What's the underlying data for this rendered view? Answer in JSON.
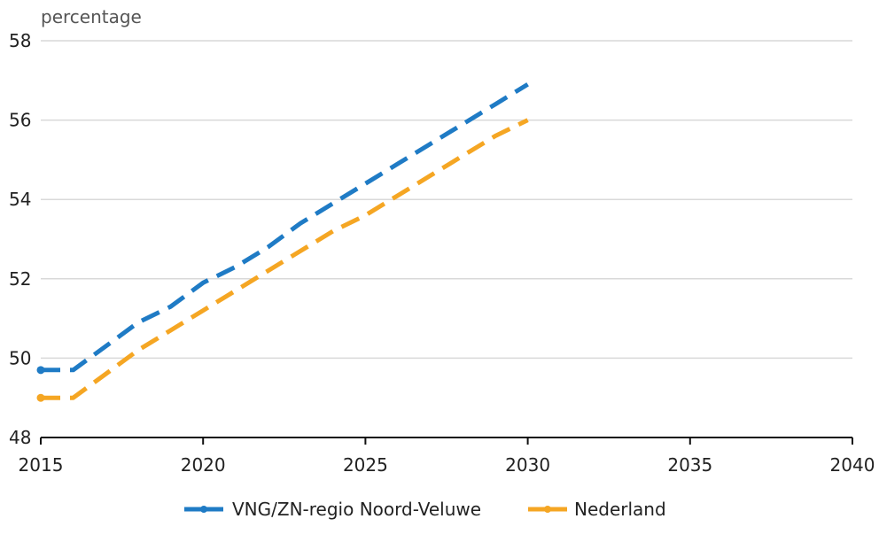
{
  "chart_data": {
    "type": "line",
    "unit_label": "percentage",
    "xlim": [
      2015,
      2040
    ],
    "ylim": [
      48,
      58
    ],
    "x_ticks": [
      2015,
      2020,
      2025,
      2030,
      2035,
      2040
    ],
    "y_ticks": [
      48,
      50,
      52,
      54,
      56,
      58
    ],
    "grid": true,
    "line_style": "dashed",
    "legend_position": "bottom",
    "series": [
      {
        "name": "VNG/ZN-regio Noord-Veluwe",
        "color": "#1f7bc5",
        "x": [
          2015,
          2016,
          2017,
          2018,
          2019,
          2020,
          2021,
          2022,
          2023,
          2024,
          2025,
          2026,
          2027,
          2028,
          2029,
          2030
        ],
        "values": [
          49.7,
          49.7,
          50.3,
          50.9,
          51.3,
          51.9,
          52.3,
          52.8,
          53.4,
          53.9,
          54.4,
          54.9,
          55.4,
          55.9,
          56.4,
          56.9
        ]
      },
      {
        "name": "Nederland",
        "color": "#f5a623",
        "x": [
          2015,
          2016,
          2017,
          2018,
          2019,
          2020,
          2021,
          2022,
          2023,
          2024,
          2025,
          2026,
          2027,
          2028,
          2029,
          2030
        ],
        "values": [
          49.0,
          49.0,
          49.6,
          50.2,
          50.7,
          51.2,
          51.7,
          52.2,
          52.7,
          53.2,
          53.6,
          54.1,
          54.6,
          55.1,
          55.6,
          56.0
        ]
      }
    ]
  }
}
